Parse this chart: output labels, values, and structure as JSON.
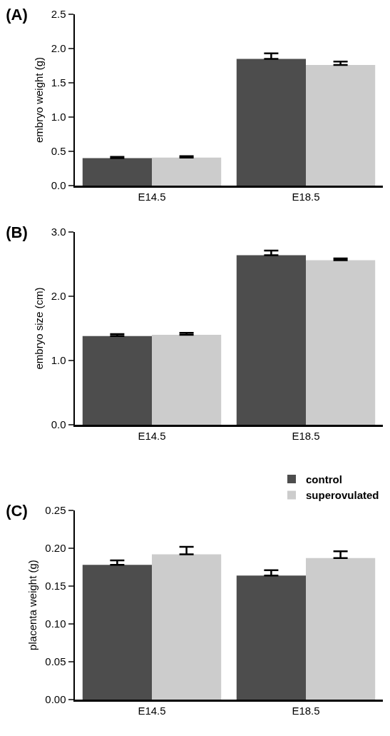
{
  "chart_data": [
    {
      "type": "bar",
      "title": "(A)",
      "ylabel": "embryo weight (g)",
      "categories": [
        "E14.5",
        "E18.5"
      ],
      "series": [
        {
          "color": "#4d4d4d",
          "values": [
            0.4,
            1.85
          ],
          "errors": [
            [
              0.4,
              0.42
            ],
            [
              1.85,
              1.93
            ]
          ]
        },
        {
          "color": "#cccccc",
          "values": [
            0.41,
            1.76
          ],
          "errors": [
            [
              0.41,
              0.43
            ],
            [
              1.76,
              1.81
            ]
          ]
        }
      ],
      "ylim": [
        0,
        2.5
      ],
      "yticks": [
        {
          "value": 0,
          "label": "0.0"
        },
        0.5,
        {
          "value": 1,
          "label": "1.0"
        },
        1.5,
        {
          "value": 2,
          "label": "2.0"
        },
        2.5
      ],
      "grid": false
    },
    {
      "type": "bar",
      "title": "(B)",
      "ylabel": "embryo size (cm)",
      "categories": [
        "E14.5",
        "E18.5"
      ],
      "series": [
        {
          "color": "#4d4d4d",
          "values": [
            1.38,
            2.64
          ],
          "errors": [
            [
              1.38,
              1.41
            ],
            [
              2.64,
              2.71
            ]
          ]
        },
        {
          "color": "#cccccc",
          "values": [
            1.4,
            2.56
          ],
          "errors": [
            [
              1.4,
              1.43
            ],
            [
              2.56,
              2.59
            ]
          ]
        }
      ],
      "ylim": [
        0,
        3
      ],
      "yticks": [
        {
          "value": 0,
          "label": "0.0"
        },
        {
          "value": 1,
          "label": "1.0"
        },
        {
          "value": 2,
          "label": "2.0"
        },
        {
          "value": 3,
          "label": "3.0"
        }
      ],
      "grid": false
    },
    {
      "type": "bar",
      "title": "(C)",
      "ylabel": "placenta weight (g)",
      "categories": [
        "E14.5",
        "E18.5"
      ],
      "series": [
        {
          "name": "control",
          "color": "#4d4d4d",
          "values": [
            0.178,
            0.164
          ],
          "errors": [
            [
              0.178,
              0.184
            ],
            [
              0.164,
              0.171
            ]
          ]
        },
        {
          "name": "superovulated",
          "color": "#cccccc",
          "values": [
            0.192,
            0.187
          ],
          "errors": [
            [
              0.192,
              0.202
            ],
            [
              0.187,
              0.196
            ]
          ]
        }
      ],
      "ylim": [
        0,
        0.25
      ],
      "yticks": [
        {
          "value": 0,
          "label": "0.00"
        },
        0.05,
        {
          "value": 0.1,
          "label": "0.10"
        },
        0.15,
        {
          "value": 0.2,
          "label": "0.20"
        },
        0.25
      ],
      "grid": false,
      "legend": "top right"
    }
  ]
}
